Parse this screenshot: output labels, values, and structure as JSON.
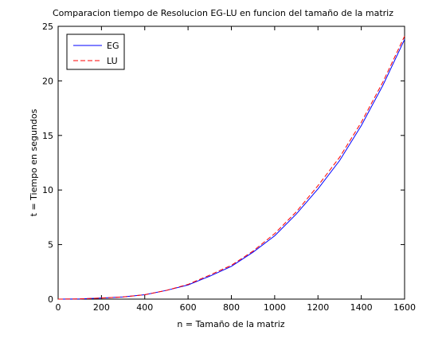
{
  "chart_data": {
    "type": "line",
    "title": "Comparacion tiempo de Resolucion EG-LU en funcion del tamaño de la matriz",
    "xlabel": "n = Tamaño de la matriz",
    "ylabel": "t = Tiempo en segundos",
    "xlim": [
      0,
      1600
    ],
    "ylim": [
      0,
      25
    ],
    "xticks": [
      0,
      200,
      400,
      600,
      800,
      1000,
      1200,
      1400,
      1600
    ],
    "yticks": [
      0,
      5,
      10,
      15,
      20,
      25
    ],
    "grid": false,
    "legend": "top-left",
    "x": [
      0,
      100,
      200,
      300,
      400,
      500,
      600,
      700,
      800,
      900,
      1000,
      1100,
      1200,
      1300,
      1400,
      1500,
      1600
    ],
    "series": [
      {
        "name": "EG",
        "color": "#0000ff",
        "style": "solid",
        "values": [
          0,
          0.02,
          0.1,
          0.2,
          0.4,
          0.8,
          1.3,
          2.1,
          3.0,
          4.3,
          5.8,
          7.8,
          10.1,
          12.7,
          15.9,
          19.6,
          23.8
        ]
      },
      {
        "name": "LU",
        "color": "#ff0000",
        "style": "dashed",
        "values": [
          0,
          0.02,
          0.1,
          0.2,
          0.4,
          0.8,
          1.35,
          2.2,
          3.1,
          4.4,
          6.0,
          8.0,
          10.4,
          13.0,
          16.2,
          19.9,
          24.1
        ]
      }
    ]
  }
}
